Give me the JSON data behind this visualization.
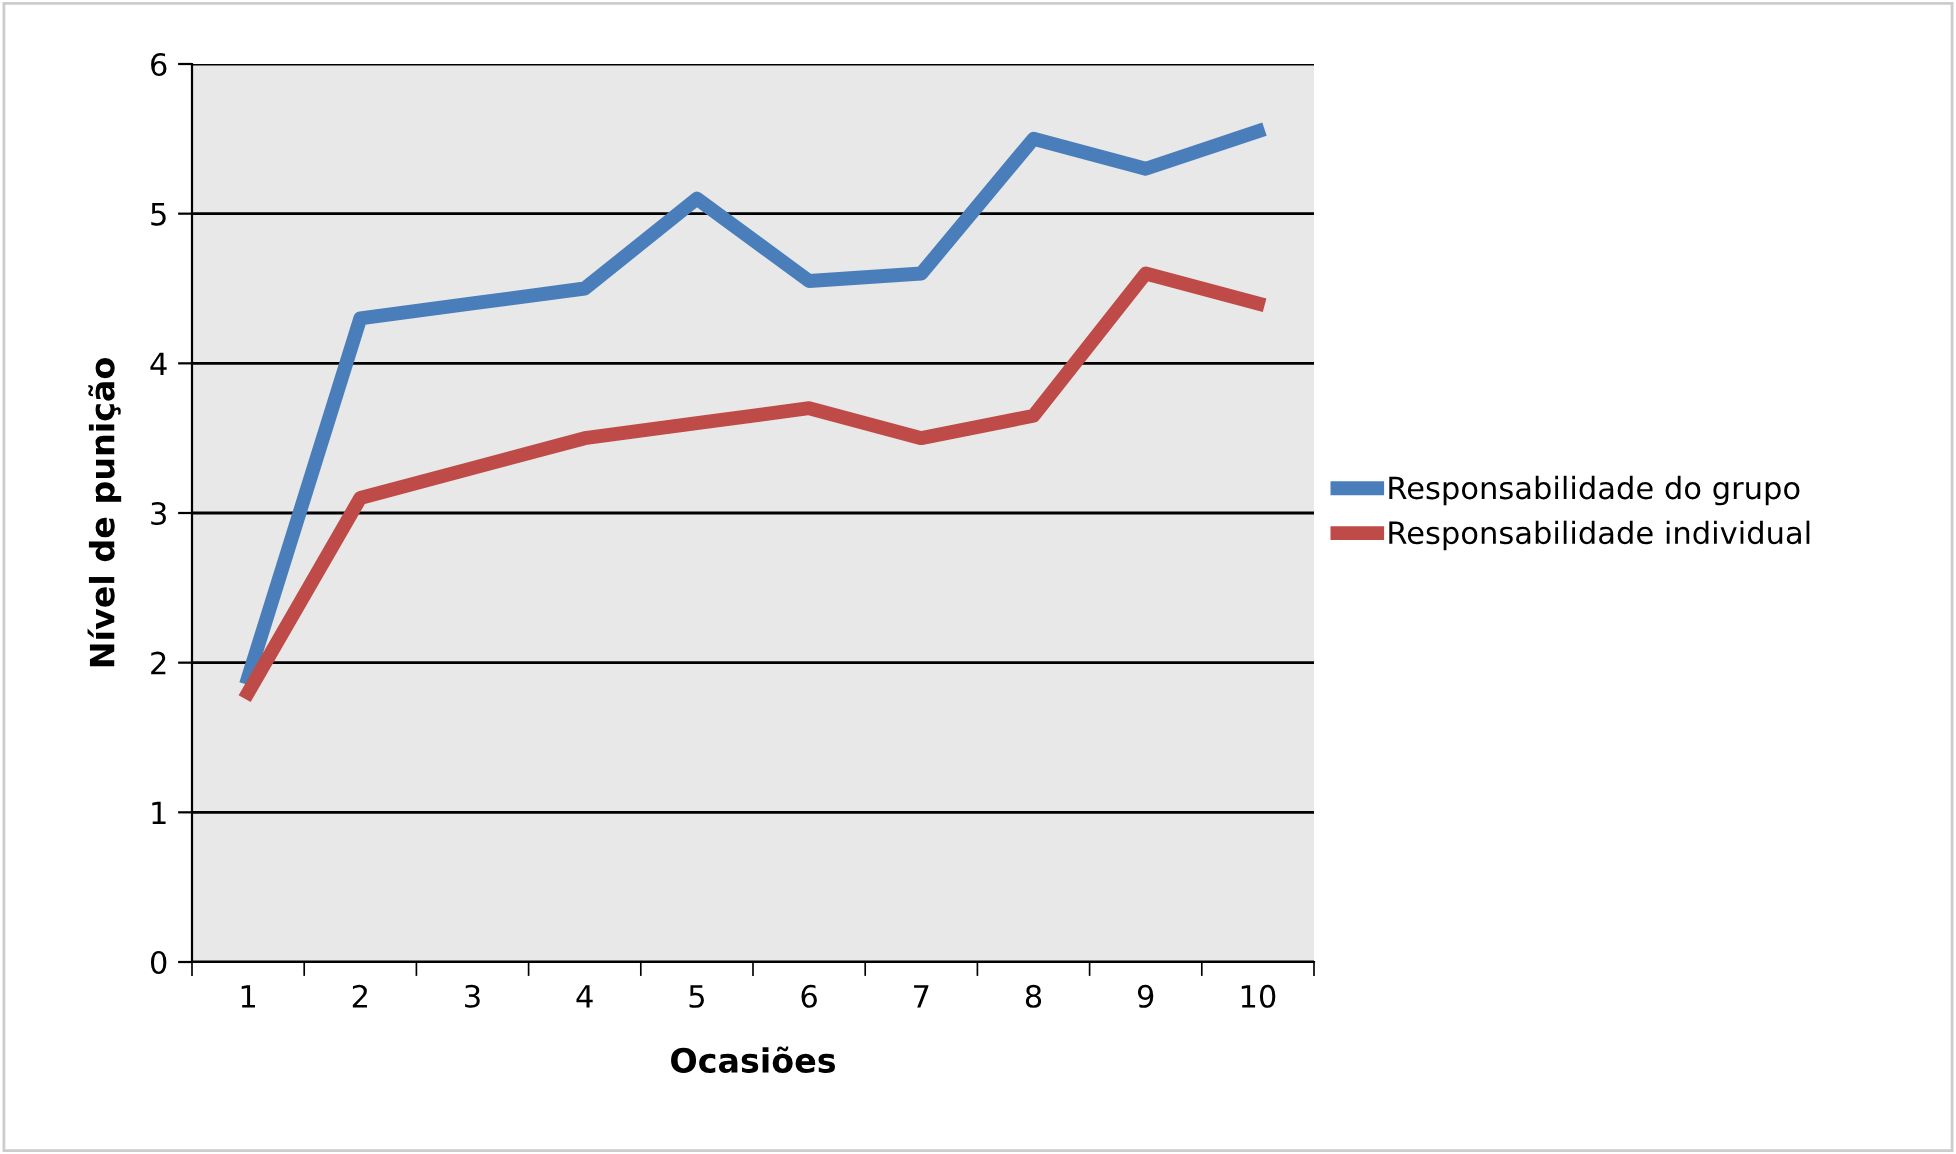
{
  "chart_data": {
    "type": "line",
    "xlabel": "Ocasiões",
    "ylabel": "Nível de punição",
    "categories": [
      "1",
      "2",
      "3",
      "4",
      "5",
      "6",
      "7",
      "8",
      "9",
      "10"
    ],
    "series": [
      {
        "name": "Responsabilidade do grupo",
        "color": "#4a7ebb",
        "values": [
          1.9,
          4.3,
          4.4,
          4.5,
          5.1,
          4.55,
          4.6,
          5.5,
          5.3,
          5.55
        ]
      },
      {
        "name": "Responsabilidade individual",
        "color": "#be4b48",
        "values": [
          1.8,
          3.1,
          3.3,
          3.5,
          3.6,
          3.7,
          3.5,
          3.65,
          4.6,
          4.4
        ]
      }
    ],
    "ylim": [
      0,
      6
    ],
    "yticks": [
      0,
      1,
      2,
      3,
      4,
      5,
      6
    ],
    "grid": "y",
    "legend": "right",
    "marker": "none",
    "line_style": "solid"
  }
}
